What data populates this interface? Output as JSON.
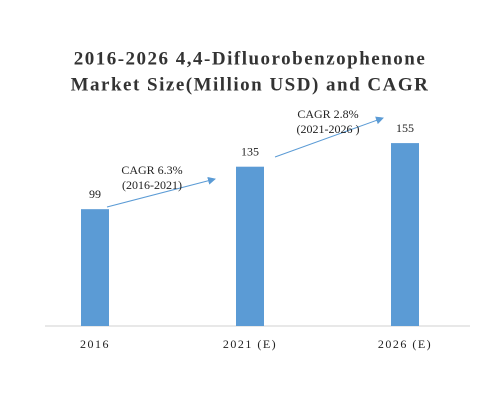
{
  "chart_data": {
    "type": "bar",
    "title": [
      "2016-2026 4,4-Difluorobenzophenone",
      "Market Size(Million USD) and CAGR"
    ],
    "categories": [
      "2016",
      "2021 (E)",
      "2026 (E)"
    ],
    "values": [
      99,
      135,
      155
    ],
    "color": "#5b9bd5",
    "ylim": [
      0,
      170
    ],
    "annotations": [
      {
        "lines": [
          "CAGR 6.3%",
          "(2016-2021)"
        ]
      },
      {
        "lines": [
          "CAGR 2.8%",
          "(2021-2026 )"
        ]
      }
    ]
  }
}
